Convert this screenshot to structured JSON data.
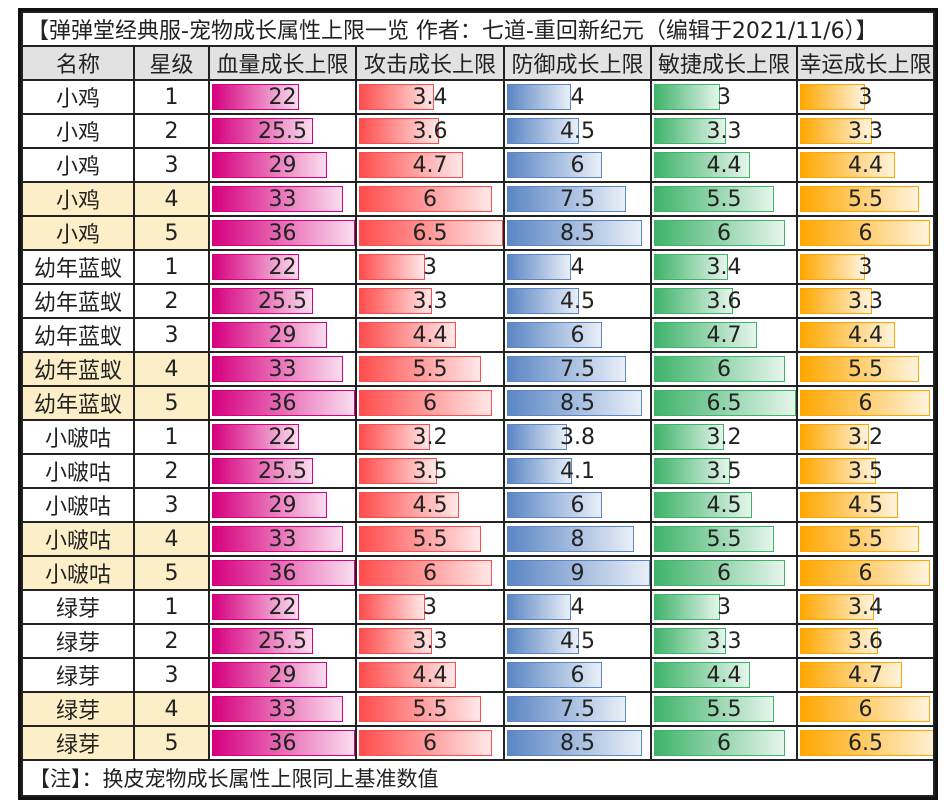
{
  "title": "【弹弹堂经典服-宠物成长属性上限一览 作者：七道-重回新纪元（编辑于2021/11/6）】",
  "headers": [
    "名称",
    "星级",
    "血量成长上限",
    "攻击成长上限",
    "防御成长上限",
    "敏捷成长上限",
    "幸运成长上限"
  ],
  "bar_colors": {
    "hp": "#d6007f",
    "atk": "#ff4d4d",
    "def": "#5b86c4",
    "agi": "#3fb36a",
    "luck": "#ffa700"
  },
  "highlight_bg": "#fcefc7",
  "rows": [
    [
      "小鸡",
      "1",
      "22",
      "3.4",
      "4",
      "3",
      "3"
    ],
    [
      "小鸡",
      "2",
      "25.5",
      "3.6",
      "4.5",
      "3.3",
      "3.3"
    ],
    [
      "小鸡",
      "3",
      "29",
      "4.7",
      "6",
      "4.4",
      "4.4"
    ],
    [
      "小鸡",
      "4",
      "33",
      "6",
      "7.5",
      "5.5",
      "5.5"
    ],
    [
      "小鸡",
      "5",
      "36",
      "6.5",
      "8.5",
      "6",
      "6"
    ],
    [
      "幼年蓝蚁",
      "1",
      "22",
      "3",
      "4",
      "3.4",
      "3"
    ],
    [
      "幼年蓝蚁",
      "2",
      "25.5",
      "3.3",
      "4.5",
      "3.6",
      "3.3"
    ],
    [
      "幼年蓝蚁",
      "3",
      "29",
      "4.4",
      "6",
      "4.7",
      "4.4"
    ],
    [
      "幼年蓝蚁",
      "4",
      "33",
      "5.5",
      "7.5",
      "6",
      "5.5"
    ],
    [
      "幼年蓝蚁",
      "5",
      "36",
      "6",
      "8.5",
      "6.5",
      "6"
    ],
    [
      "小啵咕",
      "1",
      "22",
      "3.2",
      "3.8",
      "3.2",
      "3.2"
    ],
    [
      "小啵咕",
      "2",
      "25.5",
      "3.5",
      "4.1",
      "3.5",
      "3.5"
    ],
    [
      "小啵咕",
      "3",
      "29",
      "4.5",
      "6",
      "4.5",
      "4.5"
    ],
    [
      "小啵咕",
      "4",
      "33",
      "5.5",
      "8",
      "5.5",
      "5.5"
    ],
    [
      "小啵咕",
      "5",
      "36",
      "6",
      "9",
      "6",
      "6"
    ],
    [
      "绿芽",
      "1",
      "22",
      "3",
      "4",
      "3",
      "3.4"
    ],
    [
      "绿芽",
      "2",
      "25.5",
      "3.3",
      "4.5",
      "3.3",
      "3.6"
    ],
    [
      "绿芽",
      "3",
      "29",
      "4.4",
      "6",
      "4.4",
      "4.7"
    ],
    [
      "绿芽",
      "4",
      "33",
      "5.5",
      "7.5",
      "5.5",
      "6"
    ],
    [
      "绿芽",
      "5",
      "36",
      "6",
      "8.5",
      "6",
      "6.5"
    ]
  ],
  "footer": "【注】：换皮宠物成长属性上限同上基准数值"
}
